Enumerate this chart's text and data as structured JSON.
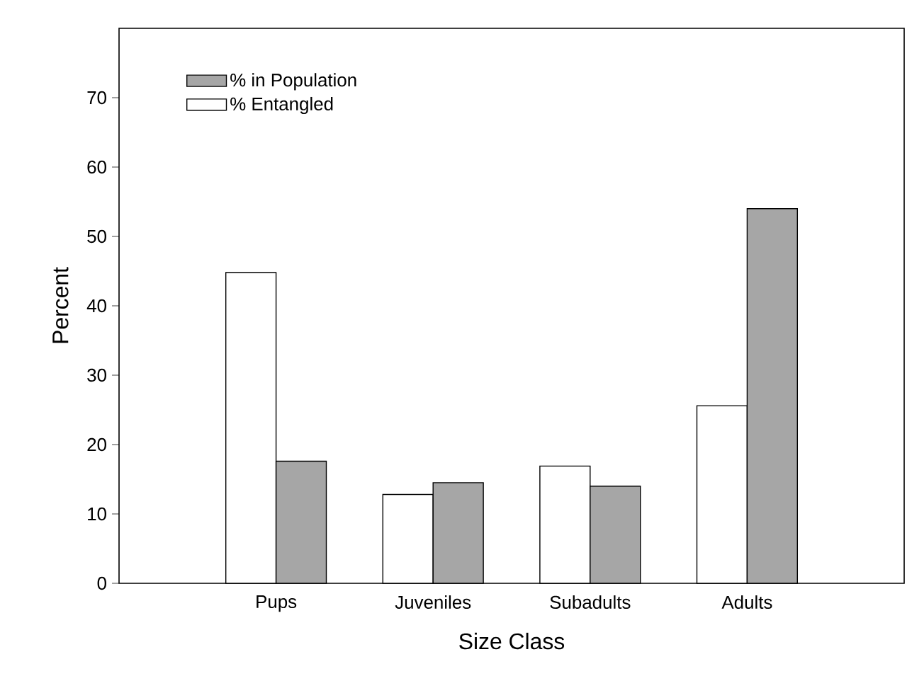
{
  "chart_data": {
    "type": "bar",
    "xlabel": "Size Class",
    "ylabel": "Percent",
    "categories": [
      "Pups",
      "Juveniles",
      "Subadults",
      "Adults"
    ],
    "series": [
      {
        "name": "% Entangled",
        "color": "#ffffff",
        "values": [
          44.8,
          12.8,
          16.9,
          25.6
        ]
      },
      {
        "name": "% in Population",
        "color": "#a6a6a6",
        "values": [
          17.6,
          14.5,
          14.0,
          54.0
        ]
      }
    ],
    "ylim": [
      0,
      80
    ],
    "yticks": [
      0,
      10,
      20,
      30,
      40,
      50,
      60,
      70
    ],
    "grid": false,
    "legend": "top left"
  }
}
